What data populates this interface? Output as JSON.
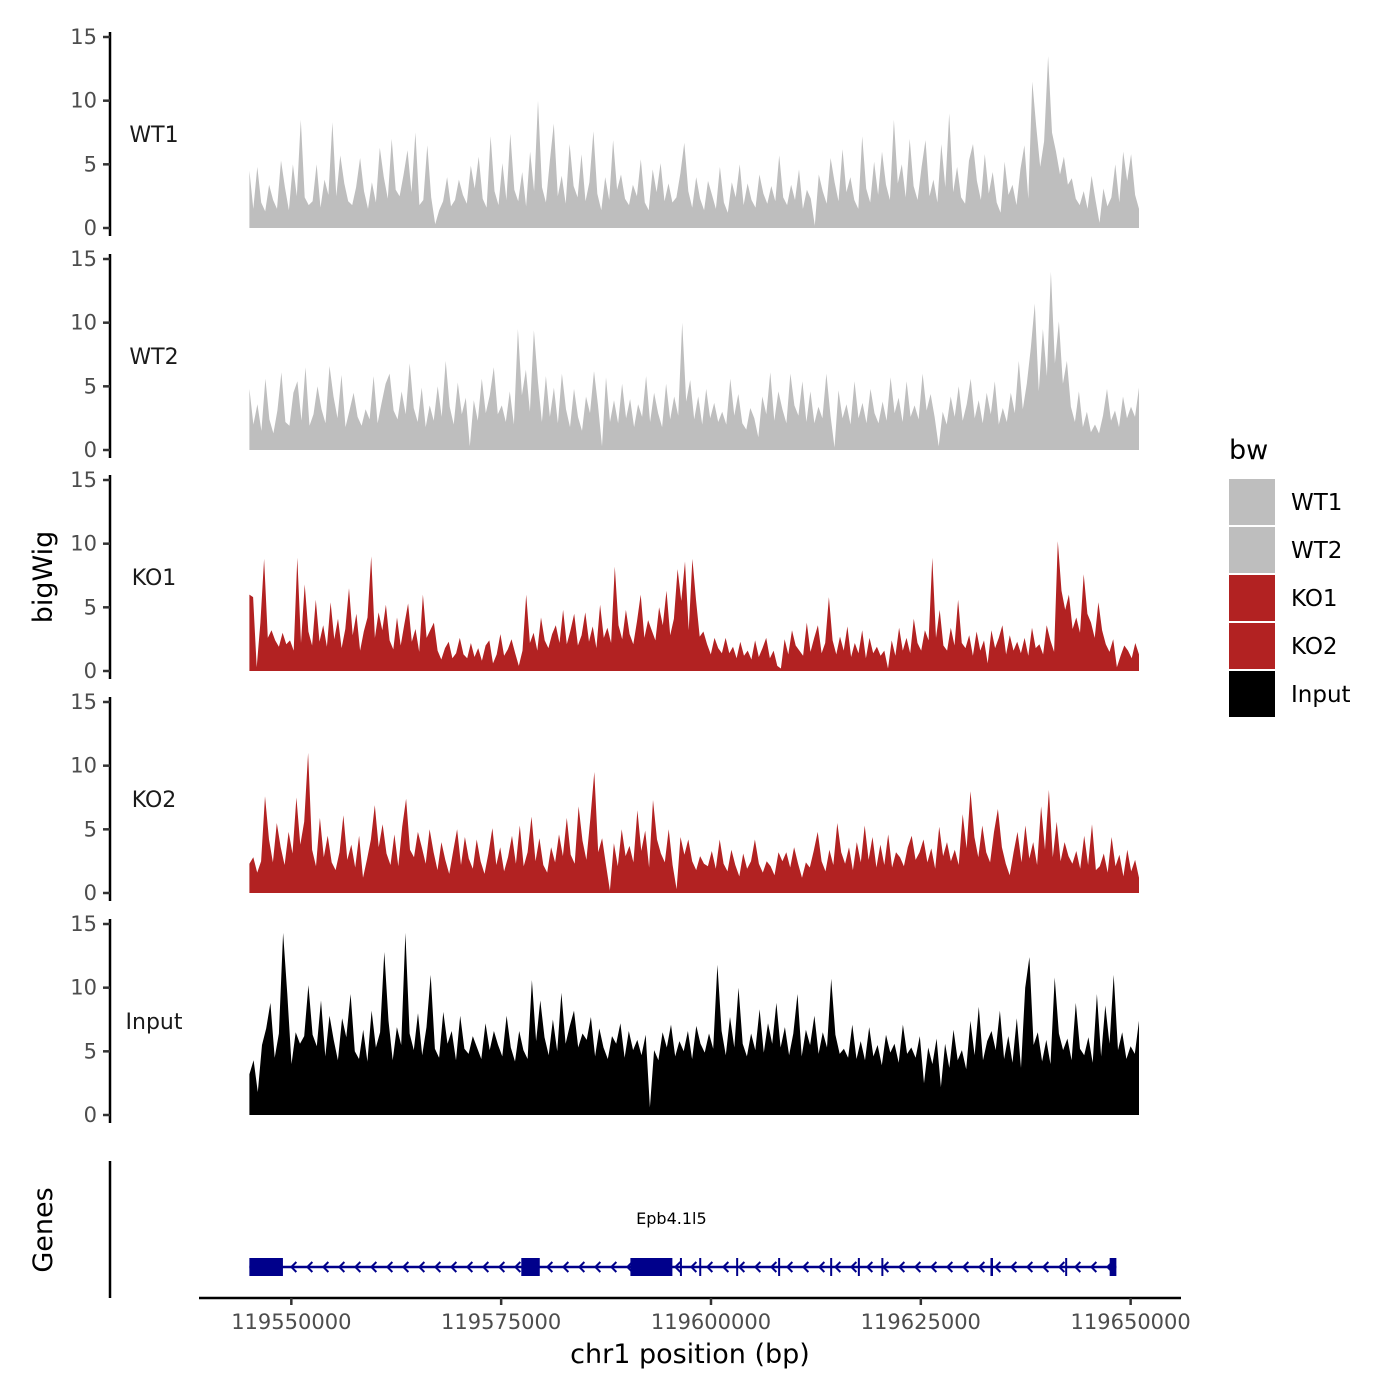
{
  "chart_data": {
    "type": "area",
    "ylabel": "bigWig",
    "xlabel": "chr1 position (bp)",
    "region": {
      "chrom": "chr1",
      "start": 119545000,
      "end": 119651000
    },
    "xlim": [
      119539000,
      119656000
    ],
    "x_ticks": [
      119550000,
      119575000,
      119600000,
      119625000,
      119650000
    ],
    "x_tick_labels": [
      "119550000",
      "119575000",
      "119600000",
      "119625000",
      "119650000"
    ],
    "ylim": [
      0,
      15
    ],
    "y_ticks": [
      0,
      5,
      10,
      15
    ],
    "y_tick_labels": [
      "0",
      "5",
      "10",
      "15"
    ],
    "tracks": [
      {
        "name": "WT1",
        "group": "WT1",
        "color": "#bebebe",
        "values": [
          4.5,
          1.5,
          4.8,
          2.0,
          1.3,
          3.4,
          2.2,
          1.5,
          5.3,
          3.2,
          1.4,
          5.0,
          2.5,
          8.5,
          2.4,
          1.8,
          2.1,
          5.0,
          1.6,
          3.8,
          2.6,
          8.3,
          2.5,
          5.7,
          3.5,
          2.1,
          1.8,
          3.2,
          5.5,
          2.9,
          1.5,
          3.6,
          2.0,
          6.3,
          4.0,
          2.3,
          7.0,
          3.0,
          2.5,
          4.2,
          6.1,
          2.8,
          7.5,
          1.8,
          2.2,
          6.5,
          2.4,
          0.3,
          1.4,
          2.1,
          4.0,
          1.7,
          2.2,
          3.8,
          2.6,
          1.9,
          4.9,
          3.1,
          5.6,
          2.3,
          1.6,
          7.2,
          2.9,
          1.8,
          5.1,
          2.2,
          7.4,
          3.0,
          2.1,
          4.4,
          1.7,
          6.0,
          2.9,
          10.0,
          3.2,
          2.0,
          5.3,
          8.2,
          2.5,
          4.1,
          1.9,
          6.6,
          3.3,
          2.4,
          5.8,
          2.1,
          3.6,
          7.6,
          2.7,
          1.4,
          4.0,
          2.2,
          6.9,
          3.0,
          4.2,
          2.3,
          1.8,
          3.4,
          2.5,
          5.4,
          2.0,
          1.4,
          4.6,
          2.8,
          5.1,
          2.1,
          3.5,
          2.0,
          2.4,
          4.3,
          6.7,
          2.9,
          1.6,
          4.0,
          2.3,
          1.4,
          3.7,
          2.6,
          1.5,
          4.8,
          2.0,
          1.2,
          3.6,
          2.4,
          5.0,
          1.8,
          3.5,
          2.2,
          1.6,
          4.2,
          2.7,
          1.9,
          3.3,
          2.1,
          5.7,
          2.4,
          1.8,
          3.4,
          2.2,
          4.6,
          1.5,
          3.0,
          2.3,
          0.2,
          4.2,
          2.9,
          1.9,
          5.5,
          3.6,
          2.1,
          6.2,
          2.8,
          4.0,
          2.2,
          1.5,
          7.2,
          3.1,
          2.0,
          5.2,
          2.6,
          6.0,
          3.4,
          2.2,
          8.5,
          3.5,
          5.0,
          2.4,
          7.0,
          3.3,
          2.2,
          4.8,
          6.9,
          2.5,
          3.8,
          2.0,
          6.6,
          3.2,
          9.0,
          2.8,
          4.8,
          2.4,
          1.9,
          5.3,
          6.6,
          3.7,
          2.2,
          5.8,
          2.7,
          4.4,
          2.0,
          1.2,
          5.2,
          2.6,
          3.4,
          1.8,
          4.6,
          6.5,
          2.3,
          11.5,
          8.0,
          4.8,
          6.8,
          13.5,
          7.5,
          6.0,
          4.2,
          5.6,
          3.4,
          3.9,
          2.3,
          1.8,
          2.9,
          1.5,
          4.1,
          2.2,
          0.4,
          3.1,
          1.7,
          2.4,
          5.0,
          2.0,
          6.0,
          3.7,
          5.8,
          2.6,
          1.5
        ]
      },
      {
        "name": "WT2",
        "group": "WT2",
        "color": "#bebebe",
        "values": [
          4.8,
          2.0,
          3.6,
          1.5,
          5.6,
          2.4,
          1.3,
          3.1,
          6.1,
          2.2,
          1.9,
          4.5,
          5.4,
          2.3,
          6.5,
          1.9,
          2.8,
          5.0,
          3.2,
          2.1,
          6.6,
          4.2,
          2.5,
          5.9,
          1.8,
          3.1,
          4.5,
          2.6,
          1.9,
          3.2,
          2.4,
          5.8,
          2.1,
          3.7,
          5.2,
          6.0,
          3.1,
          2.4,
          4.6,
          2.8,
          6.8,
          3.3,
          2.2,
          4.9,
          1.8,
          3.5,
          2.3,
          5.0,
          2.6,
          7.0,
          3.4,
          2.0,
          5.3,
          2.8,
          4.1,
          0.3,
          3.9,
          2.3,
          5.6,
          2.9,
          4.3,
          6.5,
          2.8,
          3.5,
          2.2,
          4.6,
          2.0,
          9.5,
          4.3,
          6.3,
          3.0,
          9.4,
          5.4,
          2.2,
          5.8,
          2.6,
          4.9,
          2.1,
          6.0,
          3.2,
          1.8,
          4.8,
          2.6,
          1.5,
          4.2,
          2.9,
          6.2,
          3.5,
          0.3,
          5.7,
          2.2,
          3.9,
          2.1,
          5.2,
          2.5,
          4.0,
          1.8,
          3.6,
          2.6,
          5.8,
          2.2,
          4.5,
          2.9,
          1.8,
          5.2,
          2.4,
          4.2,
          2.7,
          10.0,
          3.8,
          5.5,
          2.4,
          4.2,
          2.0,
          4.8,
          2.5,
          3.7,
          2.2,
          3.0,
          2.0,
          5.6,
          2.7,
          4.4,
          2.1,
          1.6,
          3.3,
          2.5,
          1.0,
          4.2,
          2.8,
          6.1,
          2.3,
          4.6,
          3.2,
          2.1,
          6.0,
          3.5,
          2.7,
          5.4,
          2.2,
          4.6,
          2.1,
          3.4,
          2.5,
          6.0,
          2.7,
          0.2,
          4.7,
          2.5,
          3.6,
          2.0,
          5.4,
          2.5,
          3.7,
          2.1,
          4.8,
          2.9,
          2.1,
          3.8,
          2.3,
          5.7,
          2.9,
          4.1,
          2.2,
          5.4,
          2.6,
          3.5,
          2.4,
          6.0,
          3.1,
          4.4,
          2.6,
          0.3,
          3.0,
          2.0,
          4.2,
          2.6,
          5.0,
          2.3,
          3.6,
          5.6,
          2.5,
          3.9,
          2.1,
          4.5,
          2.8,
          5.4,
          2.0,
          3.3,
          2.2,
          4.5,
          2.9,
          7.0,
          3.2,
          5.2,
          8.0,
          11.5,
          4.6,
          9.5,
          5.8,
          14.0,
          6.8,
          10.1,
          5.2,
          7.0,
          3.4,
          2.2,
          4.6,
          1.8,
          3.0,
          1.4,
          2.0,
          1.3,
          2.7,
          4.8,
          2.3,
          3.1,
          1.8,
          4.2,
          2.5,
          3.4,
          2.6,
          4.9
        ]
      },
      {
        "name": "KO1",
        "group": "KO1",
        "color": "#b22222",
        "values": [
          6.0,
          5.8,
          0.3,
          3.8,
          8.8,
          2.6,
          3.2,
          2.4,
          1.9,
          3.0,
          2.1,
          2.4,
          1.6,
          8.9,
          2.2,
          6.8,
          3.1,
          2.0,
          5.6,
          2.3,
          3.6,
          1.9,
          5.4,
          2.5,
          4.1,
          1.8,
          3.3,
          6.5,
          2.8,
          4.5,
          1.6,
          3.1,
          4.2,
          9.0,
          2.6,
          4.6,
          3.2,
          5.2,
          2.4,
          1.7,
          4.2,
          2.0,
          3.7,
          5.3,
          2.3,
          3.3,
          1.5,
          6.0,
          2.6,
          3.2,
          3.8,
          1.6,
          0.9,
          1.8,
          2.3,
          1.0,
          1.4,
          2.6,
          1.3,
          1.0,
          2.2,
          1.1,
          1.8,
          0.8,
          2.0,
          2.4,
          0.6,
          1.3,
          2.9,
          1.2,
          1.7,
          2.5,
          1.4,
          0.4,
          1.6,
          6.0,
          2.2,
          3.0,
          1.6,
          4.2,
          2.4,
          1.8,
          2.9,
          3.6,
          2.2,
          4.8,
          2.1,
          3.2,
          4.5,
          2.0,
          2.8,
          4.6,
          2.3,
          3.5,
          1.8,
          5.2,
          2.6,
          3.4,
          2.2,
          8.2,
          3.6,
          2.5,
          4.8,
          2.9,
          2.1,
          3.9,
          6.0,
          2.6,
          4.0,
          3.2,
          2.4,
          5.0,
          3.6,
          6.3,
          2.8,
          4.1,
          8.0,
          5.5,
          8.6,
          3.2,
          8.8,
          5.6,
          2.7,
          3.1,
          2.1,
          1.3,
          2.6,
          1.8,
          1.4,
          2.6,
          1.4,
          1.9,
          1.0,
          2.3,
          1.2,
          1.6,
          0.9,
          2.4,
          1.1,
          1.8,
          2.6,
          1.0,
          1.6,
          0.4,
          0.2,
          2.5,
          1.3,
          3.2,
          2.0,
          1.6,
          1.2,
          3.8,
          1.5,
          2.6,
          3.6,
          1.4,
          2.2,
          5.8,
          2.4,
          1.3,
          2.7,
          1.6,
          3.5,
          1.1,
          2.2,
          1.4,
          3.2,
          1.0,
          2.6,
          1.4,
          1.9,
          1.2,
          1.6,
          0.2,
          2.4,
          1.2,
          3.4,
          1.6,
          2.6,
          1.4,
          4.1,
          2.2,
          1.6,
          3.2,
          2.4,
          8.9,
          2.6,
          4.8,
          2.0,
          1.6,
          3.4,
          2.0,
          5.6,
          2.2,
          1.8,
          2.8,
          1.2,
          3.1,
          1.6,
          2.4,
          0.6,
          3.2,
          1.8,
          2.6,
          3.6,
          1.3,
          2.8,
          1.6,
          2.3,
          1.4,
          2.6,
          1.2,
          3.4,
          1.8,
          2.1,
          1.3,
          3.6,
          2.4,
          1.5,
          10.2,
          6.3,
          4.8,
          6.0,
          3.3,
          4.2,
          3.0,
          7.6,
          4.5,
          3.8,
          2.6,
          5.4,
          3.2,
          2.1,
          1.5,
          2.5,
          0.3,
          1.2,
          2.0,
          1.6,
          1.0,
          2.2,
          1.3
        ]
      },
      {
        "name": "KO2",
        "group": "KO2",
        "color": "#b22222",
        "values": [
          2.3,
          2.8,
          1.6,
          2.5,
          7.6,
          4.2,
          2.4,
          5.5,
          3.6,
          2.2,
          4.8,
          3.1,
          7.5,
          3.8,
          5.6,
          11.0,
          3.4,
          2.1,
          5.9,
          2.8,
          4.5,
          2.4,
          1.8,
          3.2,
          6.1,
          2.6,
          3.8,
          2.0,
          4.5,
          1.2,
          2.6,
          4.2,
          6.9,
          3.6,
          5.4,
          3.1,
          2.2,
          4.6,
          2.1,
          5.2,
          7.4,
          3.4,
          2.8,
          4.8,
          3.6,
          2.3,
          5.0,
          3.2,
          1.8,
          4.0,
          2.6,
          1.5,
          3.3,
          5.0,
          2.2,
          4.4,
          2.7,
          1.9,
          4.2,
          2.5,
          1.5,
          3.1,
          5.1,
          2.2,
          3.6,
          1.7,
          2.8,
          4.5,
          2.3,
          5.3,
          2.1,
          3.2,
          6.0,
          2.5,
          4.3,
          2.2,
          1.6,
          3.6,
          2.4,
          4.6,
          2.9,
          5.9,
          3.0,
          2.3,
          6.8,
          4.1,
          2.6,
          5.8,
          9.5,
          3.2,
          4.3,
          2.2,
          0.2,
          3.9,
          2.1,
          5.0,
          2.9,
          3.7,
          2.4,
          6.5,
          3.3,
          4.9,
          2.0,
          7.3,
          4.2,
          3.1,
          2.4,
          5.0,
          2.2,
          0.3,
          4.4,
          3.0,
          4.2,
          2.5,
          1.8,
          2.9,
          2.3,
          2.1,
          3.3,
          1.9,
          4.2,
          2.3,
          1.7,
          3.4,
          2.2,
          1.3,
          3.1,
          1.9,
          2.5,
          4.2,
          2.3,
          1.6,
          2.5,
          2.1,
          1.4,
          3.2,
          2.5,
          3.2,
          2.0,
          3.6,
          2.3,
          1.2,
          2.4,
          2.0,
          3.3,
          4.8,
          2.5,
          1.7,
          3.4,
          2.2,
          5.5,
          3.2,
          2.3,
          3.6,
          1.8,
          4.0,
          2.4,
          5.3,
          2.6,
          4.4,
          2.0,
          3.8,
          2.2,
          4.6,
          2.0,
          3.2,
          2.8,
          2.1,
          3.6,
          4.5,
          2.6,
          3.2,
          4.2,
          2.4,
          3.5,
          1.9,
          5.2,
          2.9,
          4.0,
          2.5,
          3.4,
          2.2,
          6.2,
          3.5,
          8.0,
          4.4,
          2.8,
          5.3,
          3.2,
          2.4,
          4.8,
          6.6,
          3.6,
          2.3,
          1.4,
          3.2,
          4.8,
          2.4,
          5.3,
          2.7,
          4.0,
          2.2,
          6.8,
          3.4,
          8.1,
          2.8,
          5.6,
          2.5,
          4.0,
          2.9,
          2.3,
          3.3,
          1.9,
          4.5,
          2.2,
          5.4,
          1.8,
          2.1,
          3.1,
          1.6,
          4.4,
          2.1,
          3.0,
          1.3,
          3.4,
          1.7,
          2.6,
          1.2
        ]
      },
      {
        "name": "Input",
        "group": "Input",
        "color": "#000000",
        "values": [
          3.2,
          4.3,
          1.8,
          5.5,
          6.8,
          8.8,
          4.5,
          6.4,
          14.3,
          9.5,
          4.0,
          6.5,
          5.6,
          6.2,
          10.2,
          6.3,
          5.4,
          9.0,
          4.6,
          7.8,
          5.9,
          4.3,
          7.6,
          6.1,
          9.5,
          5.0,
          4.4,
          6.7,
          4.2,
          8.2,
          5.3,
          6.5,
          12.8,
          7.4,
          4.3,
          6.9,
          5.5,
          14.3,
          6.4,
          5.1,
          8.0,
          4.7,
          6.9,
          11.0,
          5.2,
          4.5,
          8.1,
          5.6,
          6.6,
          4.3,
          7.8,
          5.2,
          4.8,
          6.2,
          5.3,
          4.4,
          7.2,
          5.1,
          6.6,
          5.5,
          4.6,
          7.8,
          5.3,
          4.2,
          6.6,
          5.1,
          4.4,
          10.6,
          5.8,
          9.0,
          6.1,
          4.7,
          7.5,
          5.0,
          9.6,
          5.6,
          7.0,
          8.2,
          5.3,
          6.4,
          5.9,
          7.7,
          4.6,
          6.8,
          5.3,
          4.4,
          6.2,
          5.6,
          7.2,
          4.5,
          6.6,
          5.1,
          5.9,
          4.7,
          6.3,
          0.6,
          5.1,
          4.3,
          6.5,
          5.3,
          7.1,
          4.6,
          5.8,
          5.0,
          6.6,
          4.4,
          7.0,
          5.6,
          4.9,
          6.4,
          5.2,
          11.8,
          6.6,
          4.7,
          7.7,
          5.3,
          10.0,
          5.6,
          4.6,
          6.4,
          5.1,
          8.3,
          4.9,
          7.2,
          5.6,
          8.8,
          5.3,
          6.9,
          4.7,
          6.4,
          9.5,
          4.6,
          6.7,
          5.5,
          7.8,
          4.8,
          6.5,
          5.3,
          10.7,
          6.3,
          4.8,
          5.2,
          4.5,
          7.1,
          4.4,
          5.8,
          4.3,
          6.9,
          4.6,
          5.5,
          3.9,
          6.3,
          4.9,
          5.6,
          4.1,
          7.1,
          4.8,
          5.3,
          4.5,
          6.2,
          2.5,
          5.3,
          4.0,
          6.0,
          2.2,
          5.6,
          3.7,
          6.7,
          4.3,
          5.1,
          3.6,
          7.4,
          4.7,
          8.5,
          4.3,
          5.8,
          6.6,
          5.1,
          8.2,
          4.4,
          6.2,
          4.1,
          7.6,
          3.7,
          10.0,
          12.4,
          5.5,
          6.5,
          4.2,
          5.9,
          4.0,
          10.8,
          6.4,
          5.1,
          6.0,
          4.3,
          8.8,
          5.2,
          4.7,
          6.1,
          4.1,
          9.5,
          4.6,
          8.6,
          5.6,
          11.0,
          5.1,
          6.5,
          4.4,
          5.4,
          4.8,
          7.4
        ]
      }
    ],
    "gene_track": {
      "label": "Genes",
      "gene_name": "Epb4.1l5",
      "strand": "-",
      "color": "#00008b",
      "start": 119545000,
      "end": 119648300,
      "exons": [
        [
          119545000,
          119549000
        ],
        [
          119577400,
          119579600
        ],
        [
          119590400,
          119595400
        ],
        [
          119596300,
          119596500
        ],
        [
          119598600,
          119598800
        ],
        [
          119603000,
          119603200
        ],
        [
          119608000,
          119608200
        ],
        [
          119614200,
          119614400
        ],
        [
          119617500,
          119617700
        ],
        [
          119620300,
          119620500
        ],
        [
          119633300,
          119633600
        ],
        [
          119642200,
          119642400
        ],
        [
          119647500,
          119648300
        ]
      ]
    },
    "legend": {
      "title": "bw",
      "position": "right",
      "entries": [
        {
          "label": "WT1",
          "color": "#bebebe"
        },
        {
          "label": "WT2",
          "color": "#bebebe"
        },
        {
          "label": "KO1",
          "color": "#b22222"
        },
        {
          "label": "KO2",
          "color": "#b22222"
        },
        {
          "label": "Input",
          "color": "#000000"
        }
      ]
    }
  }
}
